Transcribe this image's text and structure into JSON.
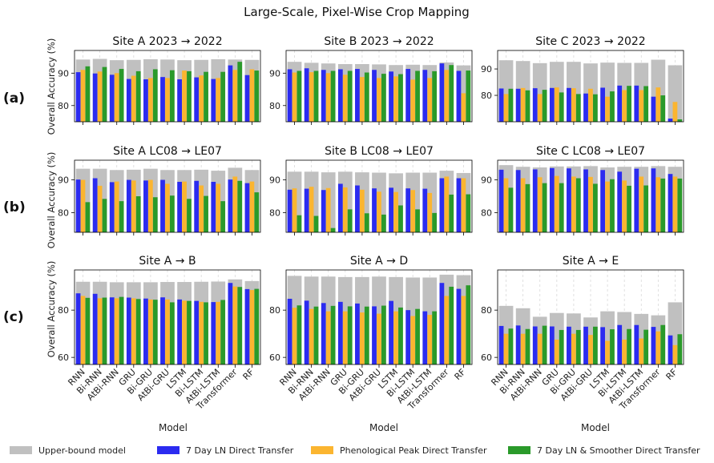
{
  "suptitle": "Large-Scale, Pixel-Wise Crop Mapping",
  "row_labels": [
    "(a)",
    "(b)",
    "(c)"
  ],
  "ylabel": "Overall Accuracy (%)",
  "xlabel": "Model",
  "models": [
    "RNN",
    "Bi-RNN",
    "AtBi-RNN",
    "GRU",
    "Bi-GRU",
    "AtBi-GRU",
    "LSTM",
    "Bi-LSTM",
    "AtBi-LSTM",
    "Transformer",
    "RF"
  ],
  "series_names": [
    "Upper-bound model",
    "7 Day LN Direct Transfer",
    "Phenological Peak Direct Transfer",
    "7 Day LN & Smoother Direct Transfer"
  ],
  "colors": {
    "upper": "#c0c0c0",
    "ln7": "#2b2bf0",
    "peak": "#fbb530",
    "smooth": "#2a9a2a"
  },
  "chart_data": [
    {
      "type": "bar",
      "title": "Site A 2023 → 2022",
      "ylim": [
        75,
        97
      ],
      "yticks": [
        80,
        90
      ],
      "series": [
        {
          "name": "Upper-bound model",
          "values": [
            94.2,
            94.4,
            94.0,
            94.1,
            94.3,
            94.2,
            94.0,
            94.1,
            94.3,
            94.2,
            94.1
          ]
        },
        {
          "name": "7 Day LN Direct Transfer",
          "values": [
            90.3,
            89.9,
            89.5,
            88.2,
            88.1,
            88.8,
            88.1,
            88.7,
            88.2,
            92.4,
            89.4
          ]
        },
        {
          "name": "Phenological Peak Direct Transfer",
          "values": [
            91.0,
            90.5,
            90.0,
            89.2,
            88.5,
            88.5,
            90.8,
            89.3,
            88.5,
            91.0,
            91.2
          ]
        },
        {
          "name": "7 Day LN & Smoother Direct Transfer",
          "values": [
            92.1,
            91.9,
            91.3,
            90.6,
            91.2,
            90.9,
            90.6,
            90.4,
            90.4,
            93.5,
            90.8
          ]
        }
      ]
    },
    {
      "type": "bar",
      "title": "Site B 2023 → 2022",
      "ylim": [
        75,
        97
      ],
      "yticks": [
        80,
        90
      ],
      "series": [
        {
          "name": "Upper-bound model",
          "values": [
            93.5,
            93.2,
            93.0,
            92.8,
            92.8,
            92.7,
            92.5,
            92.6,
            92.5,
            93.3,
            92.4
          ]
        },
        {
          "name": "7 Day LN Direct Transfer",
          "values": [
            91.2,
            91.5,
            91.0,
            91.2,
            91.3,
            91.0,
            90.5,
            91.3,
            91.0,
            93.0,
            90.7
          ]
        },
        {
          "name": "Phenological Peak Direct Transfer",
          "values": [
            90.2,
            90.3,
            90.0,
            89.5,
            88.8,
            88.5,
            89.0,
            88.0,
            88.5,
            91.0,
            83.8
          ]
        },
        {
          "name": "7 Day LN & Smoother Direct Transfer",
          "values": [
            90.7,
            90.7,
            90.7,
            90.7,
            90.2,
            89.8,
            89.7,
            90.7,
            90.6,
            92.5,
            90.8
          ]
        }
      ]
    },
    {
      "type": "bar",
      "title": "Site C 2023 → 2022",
      "ylim": [
        70,
        97
      ],
      "yticks": [
        80,
        90
      ],
      "series": [
        {
          "name": "Upper-bound model",
          "values": [
            93.3,
            93.0,
            92.2,
            92.7,
            92.7,
            92.1,
            92.4,
            92.3,
            92.3,
            93.5,
            91.4
          ]
        },
        {
          "name": "7 Day LN Direct Transfer",
          "values": [
            82.6,
            82.5,
            82.7,
            82.8,
            82.8,
            80.7,
            82.9,
            83.7,
            83.7,
            79.5,
            71.2
          ]
        },
        {
          "name": "Phenological Peak Direct Transfer",
          "values": [
            80.5,
            82.8,
            80.5,
            83.0,
            82.7,
            82.5,
            79.5,
            82.0,
            82.0,
            83.0,
            77.5
          ]
        },
        {
          "name": "7 Day LN & Smoother Direct Transfer",
          "values": [
            82.5,
            81.9,
            82.1,
            81.1,
            80.5,
            80.4,
            81.5,
            83.6,
            83.5,
            80.0,
            70.9
          ]
        }
      ]
    },
    {
      "type": "bar",
      "title": "Site A LC08 → LE07",
      "ylim": [
        74,
        96
      ],
      "yticks": [
        80,
        90
      ],
      "series": [
        {
          "name": "Upper-bound model",
          "values": [
            93.4,
            93.4,
            93.0,
            93.1,
            93.4,
            93.0,
            93.0,
            93.1,
            92.8,
            93.7,
            93.0
          ]
        },
        {
          "name": "7 Day LN Direct Transfer",
          "values": [
            90.1,
            90.5,
            89.3,
            90.0,
            89.8,
            90.0,
            89.4,
            89.7,
            89.4,
            90.1,
            89.0
          ]
        },
        {
          "name": "Phenological Peak Direct Transfer",
          "values": [
            90.0,
            88.2,
            89.5,
            89.8,
            90.0,
            88.8,
            89.5,
            88.3,
            88.8,
            91.0,
            89.5
          ]
        },
        {
          "name": "7 Day LN & Smoother Direct Transfer",
          "values": [
            83.2,
            84.2,
            83.5,
            85.0,
            84.7,
            85.2,
            84.2,
            85.1,
            83.5,
            89.7,
            86.2
          ]
        }
      ]
    },
    {
      "type": "bar",
      "title": "Site B LC08 → LE07",
      "ylim": [
        74,
        96
      ],
      "yticks": [
        80,
        90
      ],
      "series": [
        {
          "name": "Upper-bound model",
          "values": [
            92.5,
            92.5,
            92.3,
            92.5,
            92.3,
            92.2,
            92.0,
            92.2,
            92.2,
            92.8,
            92.1
          ]
        },
        {
          "name": "7 Day LN Direct Transfer",
          "values": [
            87.0,
            87.3,
            86.9,
            88.8,
            88.3,
            87.4,
            87.6,
            87.4,
            87.3,
            90.5,
            90.5
          ]
        },
        {
          "name": "Phenological Peak Direct Transfer",
          "values": [
            87.4,
            87.9,
            87.5,
            87.7,
            87.0,
            86.4,
            86.3,
            86.9,
            86.0,
            91.0,
            90.5
          ]
        },
        {
          "name": "7 Day LN & Smoother Direct Transfer",
          "values": [
            79.2,
            79.0,
            75.3,
            81.0,
            79.8,
            79.4,
            82.2,
            81.0,
            79.9,
            85.5,
            85.6
          ]
        }
      ]
    },
    {
      "type": "bar",
      "title": "Site C LC08 → LE07",
      "ylim": [
        74,
        96
      ],
      "yticks": [
        80,
        90
      ],
      "series": [
        {
          "name": "Upper-bound model",
          "values": [
            94.5,
            94.0,
            93.8,
            94.1,
            94.1,
            94.2,
            93.8,
            94.0,
            94.0,
            94.2,
            94.0
          ]
        },
        {
          "name": "7 Day LN Direct Transfer",
          "values": [
            93.1,
            93.0,
            93.2,
            93.6,
            93.5,
            93.2,
            93.0,
            92.5,
            93.4,
            93.5,
            91.8
          ]
        },
        {
          "name": "Phenological Peak Direct Transfer",
          "values": [
            90.5,
            90.5,
            90.8,
            91.2,
            91.0,
            90.9,
            89.5,
            89.8,
            91.0,
            90.8,
            91.0
          ]
        },
        {
          "name": "7 Day LN & Smoother Direct Transfer",
          "values": [
            87.6,
            88.7,
            89.0,
            89.0,
            90.5,
            88.8,
            90.2,
            88.2,
            88.3,
            90.4,
            90.4
          ]
        }
      ]
    },
    {
      "type": "bar",
      "title": "Site A → B",
      "ylim": [
        57,
        97
      ],
      "yticks": [
        60,
        80
      ],
      "series": [
        {
          "name": "Upper-bound model",
          "values": [
            92.0,
            92.0,
            91.8,
            91.8,
            91.8,
            91.9,
            91.9,
            92.0,
            92.1,
            93.0,
            92.3
          ]
        },
        {
          "name": "7 Day LN Direct Transfer",
          "values": [
            87.1,
            86.9,
            85.4,
            85.3,
            84.9,
            85.4,
            84.5,
            83.9,
            83.4,
            91.5,
            88.9
          ]
        },
        {
          "name": "Phenological Peak Direct Transfer",
          "values": [
            86.0,
            85.0,
            85.0,
            85.0,
            84.5,
            84.5,
            84.0,
            83.5,
            83.5,
            90.0,
            88.5
          ]
        },
        {
          "name": "7 Day LN & Smoother Direct Transfer",
          "values": [
            85.2,
            85.3,
            85.6,
            84.7,
            84.4,
            83.3,
            83.9,
            83.3,
            84.3,
            89.8,
            89.0
          ]
        }
      ]
    },
    {
      "type": "bar",
      "title": "Site A → D",
      "ylim": [
        57,
        97
      ],
      "yticks": [
        60,
        80
      ],
      "series": [
        {
          "name": "Upper-bound model",
          "values": [
            94.5,
            94.2,
            94.2,
            94.0,
            94.0,
            94.2,
            94.0,
            93.8,
            93.8,
            95.0,
            94.8
          ]
        },
        {
          "name": "7 Day LN Direct Transfer",
          "values": [
            84.8,
            84.0,
            83.0,
            83.5,
            82.8,
            81.6,
            83.9,
            80.0,
            79.5,
            91.5,
            89.0
          ]
        },
        {
          "name": "Phenological Peak Direct Transfer",
          "values": [
            81.0,
            80.5,
            79.5,
            79.5,
            79.0,
            78.5,
            79.5,
            77.5,
            78.0,
            86.0,
            86.0
          ]
        },
        {
          "name": "7 Day LN & Smoother Direct Transfer",
          "values": [
            82.0,
            81.5,
            81.8,
            81.6,
            81.5,
            81.9,
            81.1,
            80.5,
            79.5,
            89.9,
            90.5
          ]
        }
      ]
    },
    {
      "type": "bar",
      "title": "Site A → E",
      "ylim": [
        57,
        97
      ],
      "yticks": [
        60,
        80
      ],
      "series": [
        {
          "name": "Upper-bound model",
          "values": [
            81.8,
            80.8,
            77.2,
            78.8,
            78.6,
            76.9,
            79.5,
            79.2,
            78.4,
            77.8,
            83.3
          ]
        },
        {
          "name": "7 Day LN Direct Transfer",
          "values": [
            73.3,
            73.5,
            73.1,
            73.1,
            73.0,
            73.0,
            72.8,
            73.7,
            73.7,
            72.9,
            69.3
          ]
        },
        {
          "name": "Phenological Peak Direct Transfer",
          "values": [
            70.0,
            70.0,
            70.0,
            67.5,
            70.0,
            69.5,
            67.0,
            67.5,
            68.0,
            71.0,
            65.2
          ]
        },
        {
          "name": "7 Day LN & Smoother Direct Transfer",
          "values": [
            72.2,
            72.0,
            73.4,
            71.6,
            71.6,
            73.0,
            71.9,
            72.0,
            71.7,
            73.7,
            69.8
          ]
        }
      ]
    }
  ]
}
